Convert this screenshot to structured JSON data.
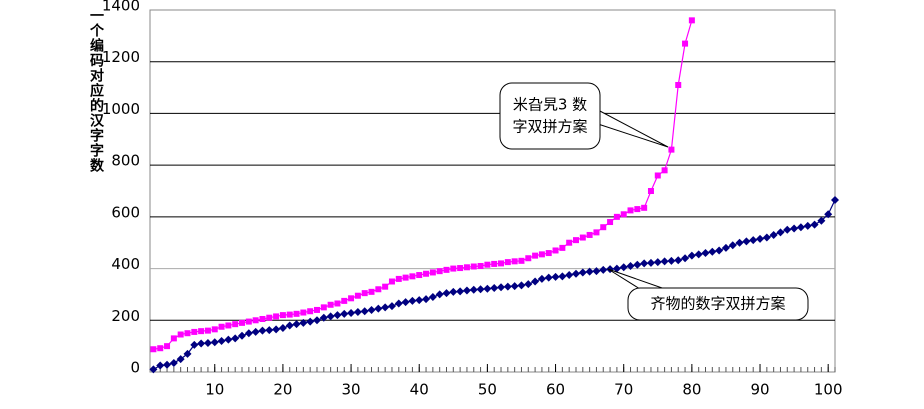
{
  "chart_data": {
    "type": "line",
    "y_label": "一个编码对应的汉字字数",
    "x": [
      1,
      2,
      3,
      4,
      5,
      6,
      7,
      8,
      9,
      10,
      11,
      12,
      13,
      14,
      15,
      16,
      17,
      18,
      19,
      20,
      21,
      22,
      23,
      24,
      25,
      26,
      27,
      28,
      29,
      30,
      31,
      32,
      33,
      34,
      35,
      36,
      37,
      38,
      39,
      40,
      41,
      42,
      43,
      44,
      45,
      46,
      47,
      48,
      49,
      50,
      51,
      52,
      53,
      54,
      55,
      56,
      57,
      58,
      59,
      60,
      61,
      62,
      63,
      64,
      65,
      66,
      67,
      68,
      69,
      70,
      71,
      72,
      73,
      74,
      75,
      76,
      77,
      78,
      79,
      80,
      81,
      82,
      83,
      84,
      85,
      86,
      87,
      88,
      89,
      90,
      91,
      92,
      93,
      94,
      95,
      96,
      97,
      98,
      99,
      100,
      101
    ],
    "series": [
      {
        "name": "米旮旯3 数字双拼方案",
        "color": "#ff00ff",
        "marker": "square",
        "values": [
          88,
          92,
          100,
          130,
          145,
          150,
          155,
          158,
          160,
          165,
          175,
          180,
          185,
          190,
          195,
          200,
          205,
          210,
          215,
          220,
          222,
          225,
          230,
          235,
          240,
          250,
          260,
          265,
          275,
          285,
          295,
          305,
          310,
          320,
          330,
          350,
          360,
          365,
          370,
          375,
          380,
          385,
          390,
          395,
          400,
          402,
          405,
          408,
          410,
          415,
          418,
          420,
          425,
          428,
          430,
          440,
          450,
          455,
          460,
          470,
          480,
          500,
          510,
          520,
          530,
          540,
          560,
          580,
          600,
          610,
          625,
          630,
          635,
          700,
          760,
          780,
          860,
          1110,
          1270,
          1360,
          null,
          null,
          null,
          null,
          null,
          null,
          null,
          null,
          null,
          null,
          null,
          null,
          null,
          null,
          null,
          null,
          null,
          null,
          null,
          null,
          null
        ]
      },
      {
        "name": "齐物的数字双拼方案",
        "color": "#000080",
        "marker": "diamond",
        "values": [
          10,
          25,
          28,
          35,
          50,
          70,
          105,
          110,
          112,
          115,
          120,
          125,
          130,
          140,
          150,
          155,
          160,
          162,
          165,
          170,
          180,
          185,
          190,
          195,
          200,
          210,
          215,
          220,
          225,
          228,
          232,
          235,
          240,
          245,
          250,
          255,
          265,
          270,
          275,
          278,
          282,
          290,
          300,
          305,
          310,
          312,
          315,
          318,
          320,
          322,
          325,
          328,
          330,
          332,
          335,
          340,
          350,
          360,
          365,
          368,
          370,
          375,
          380,
          385,
          388,
          390,
          395,
          398,
          400,
          405,
          410,
          415,
          420,
          422,
          425,
          428,
          430,
          432,
          440,
          450,
          455,
          460,
          465,
          470,
          480,
          490,
          500,
          505,
          510,
          515,
          520,
          530,
          540,
          550,
          555,
          560,
          565,
          570,
          585,
          610,
          665
        ]
      }
    ],
    "annotations": [
      [
        "米旮旯3 数",
        "字双拼方案"
      ],
      [
        "齐物的数字双拼方案"
      ]
    ],
    "xlim": [
      0.5,
      101
    ],
    "xticks": [
      10,
      20,
      30,
      40,
      50,
      60,
      70,
      80,
      90,
      100
    ],
    "ylim": [
      0,
      1400
    ],
    "yticks": [
      0,
      200,
      400,
      600,
      800,
      1000,
      1200,
      1400
    ],
    "grid": true
  }
}
